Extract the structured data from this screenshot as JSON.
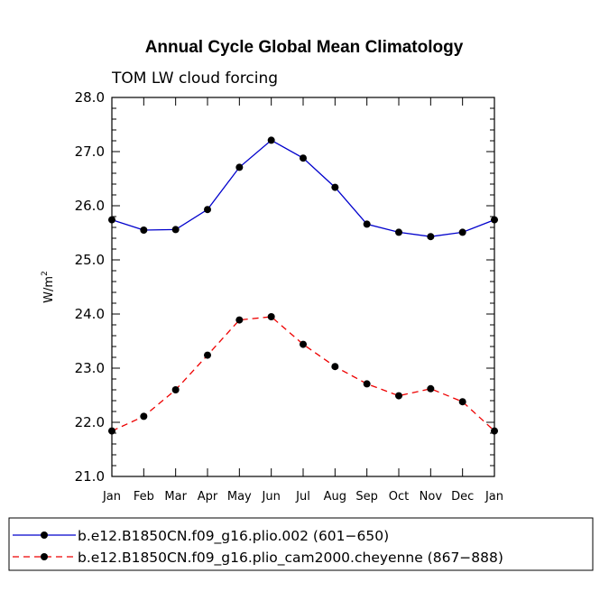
{
  "chart_data": {
    "type": "line",
    "title": "Annual Cycle Global Mean Climatology",
    "subtitle": "TOM LW cloud forcing",
    "xlabel": "",
    "ylabel": "W/m",
    "ylabel_superscript": "2",
    "ylim": [
      21.0,
      28.0
    ],
    "yticks": [
      "21.0",
      "22.0",
      "23.0",
      "24.0",
      "25.0",
      "26.0",
      "27.0",
      "28.0"
    ],
    "categories": [
      "Jan",
      "Feb",
      "Mar",
      "Apr",
      "May",
      "Jun",
      "Jul",
      "Aug",
      "Sep",
      "Oct",
      "Nov",
      "Dec",
      "Jan"
    ],
    "series": [
      {
        "name": "b.e12.B1850CN.f09_g16.plio.002 (601−650)",
        "color": "#0000cc",
        "dash": "solid",
        "values": [
          25.74,
          25.55,
          25.56,
          25.93,
          26.71,
          27.21,
          26.88,
          26.34,
          25.66,
          25.51,
          25.43,
          25.51,
          25.74
        ]
      },
      {
        "name": "b.e12.B1850CN.f09_g16.plio_cam2000.cheyenne (867−888)",
        "color": "#ee0000",
        "dash": "dashed",
        "values": [
          21.84,
          22.11,
          22.6,
          23.24,
          23.89,
          23.95,
          23.44,
          23.03,
          22.71,
          22.49,
          22.62,
          22.38,
          21.84
        ]
      }
    ],
    "legend_position": "bottom"
  }
}
